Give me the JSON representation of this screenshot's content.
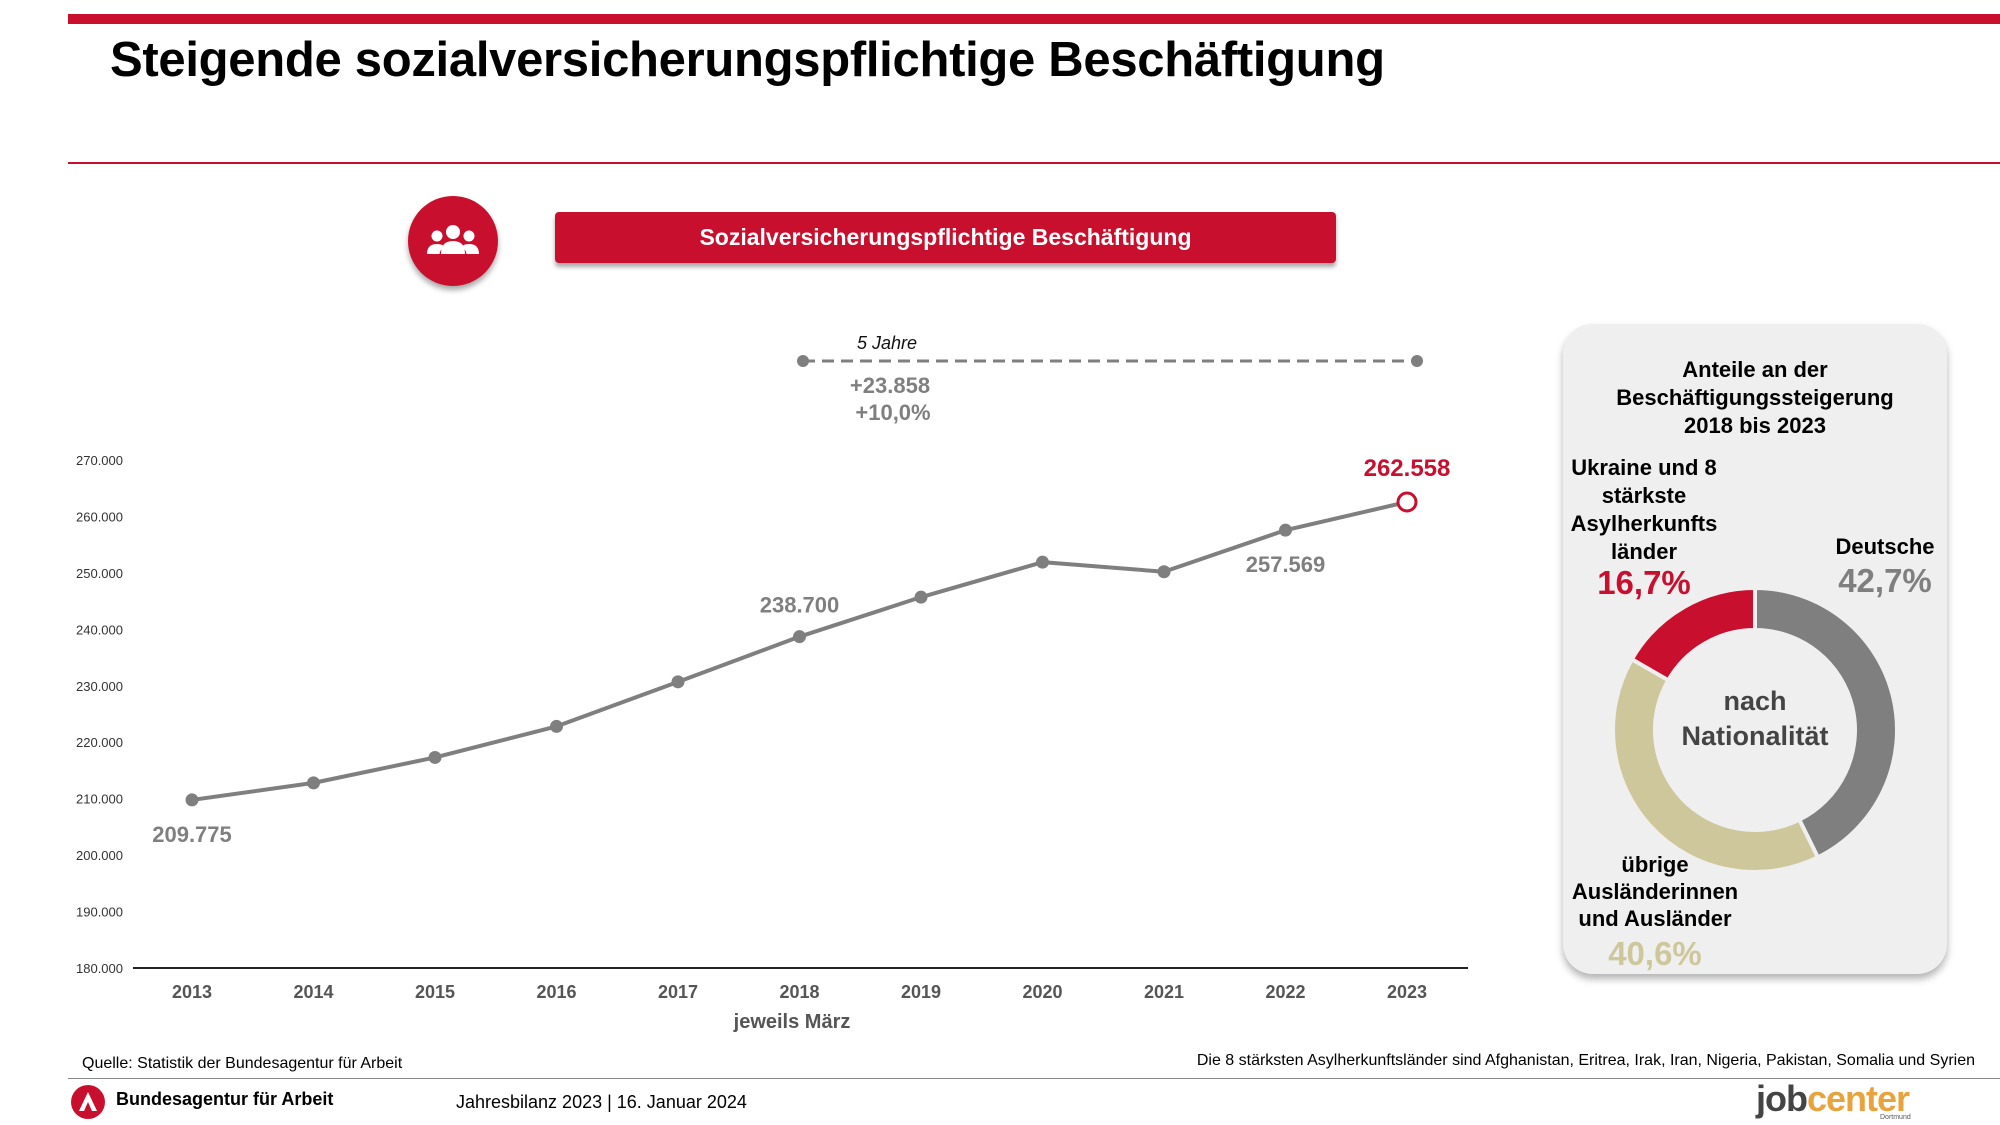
{
  "header": {
    "title": "Steigende sozialversicherungspflichtige Beschäftigung"
  },
  "section": {
    "title": "Sozialversicherungspflichtige Beschäftigung",
    "icon": "people-group-icon"
  },
  "comparison": {
    "period_label": "5 Jahre",
    "abs_change": "+23.858",
    "pct_change": "+10,0%",
    "from_year": "2018",
    "to_year": "2023"
  },
  "chart_data": [
    {
      "type": "line",
      "x": [
        "2013",
        "2014",
        "2015",
        "2016",
        "2017",
        "2018",
        "2019",
        "2020",
        "2021",
        "2022",
        "2023"
      ],
      "series": [
        {
          "values": [
            209775,
            212800,
            217300,
            222800,
            230700,
            238700,
            245700,
            251900,
            250200,
            257569,
            262558
          ]
        }
      ],
      "xlabel": "jeweils März",
      "ylabel": "",
      "ylim": [
        180000,
        270000
      ],
      "yticks": [
        "270.000",
        "260.000",
        "250.000",
        "240.000",
        "230.000",
        "220.000",
        "210.000",
        "200.000",
        "190.000",
        "180.000"
      ],
      "data_labels": [
        {
          "x": "2013",
          "text": "209.775"
        },
        {
          "x": "2018",
          "text": "238.700"
        },
        {
          "x": "2022",
          "text": "257.569"
        },
        {
          "x": "2023",
          "text": "262.558"
        }
      ],
      "line_color": "#7f7f7f",
      "highlight_color": "#c8102e",
      "grid": false
    },
    {
      "type": "pie",
      "title": "Anteile an der Beschäftigungssteigerung 2018 bis 2023",
      "center_label": [
        "nach",
        "Nationalität"
      ],
      "slices": [
        {
          "label": "Deutsche",
          "value": 42.7,
          "text": "42,7%",
          "color": "#7f7f7f"
        },
        {
          "label": "übrige Ausländerinnen und Ausländer",
          "value": 40.6,
          "text": "40,6%",
          "color": "#cfc79c"
        },
        {
          "label": "Ukraine und 8 stärkste Asylherkunfts länder",
          "value": 16.7,
          "text": "16,7%",
          "color": "#c8102e"
        }
      ]
    }
  ],
  "donut_labels": {
    "title_lines": [
      "Anteile an der",
      "Beschäftigungssteigerung",
      "2018 bis 2023"
    ],
    "ukraine_lines": [
      "Ukraine und 8",
      "stärkste",
      "Asylherkunfts",
      "länder"
    ],
    "deutsche": "Deutsche",
    "other_lines": [
      "übrige",
      "Ausländerinnen",
      "und Ausländer"
    ]
  },
  "footer": {
    "source": "Quelle: Statistik der Bundesagentur für Arbeit",
    "asylum_note": "Die 8 stärksten Asylherkunftsländer sind Afghanistan, Eritrea, Irak, Iran, Nigeria, Pakistan, Somalia und Syrien",
    "org_name": "Bundesagentur für Arbeit",
    "event": "Jahresbilanz 2023  |  16. Januar 2024",
    "logo_job": "job",
    "logo_center": "center",
    "logo_city": "Dortmund"
  },
  "colors": {
    "accent": "#c8102e",
    "gray": "#7f7f7f",
    "beige": "#cfc79c"
  }
}
